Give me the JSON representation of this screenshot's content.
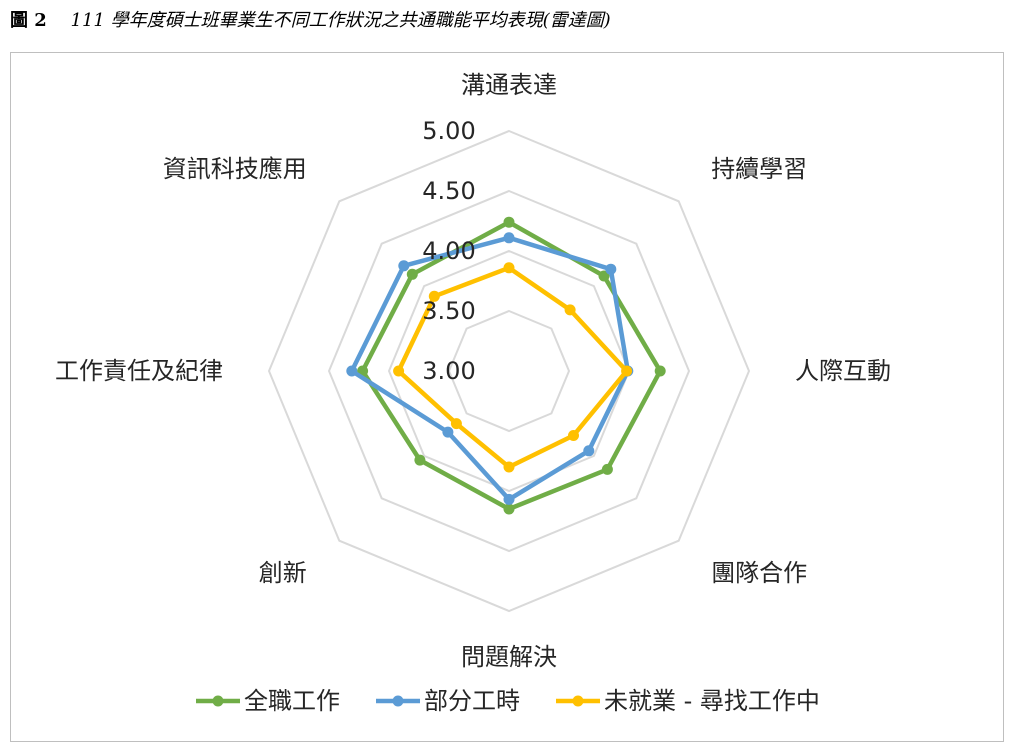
{
  "caption": {
    "label": "圖 2",
    "title": "111 學年度碩士班畢業生不同工作狀況之共通職能平均表現(雷達圖)"
  },
  "chart_data": {
    "type": "radar",
    "categories": [
      "溝通表達",
      "持續學習",
      "人際互動",
      "團隊合作",
      "問題解決",
      "創新",
      "工作責任及紀律",
      "資訊科技應用"
    ],
    "rlim": [
      3.0,
      5.0
    ],
    "ticks": [
      "3.00",
      "3.50",
      "4.00",
      "4.50",
      "5.00"
    ],
    "tick_values": [
      3.0,
      3.5,
      4.0,
      4.5,
      5.0
    ],
    "grid": true,
    "legend_position": "bottom",
    "series": [
      {
        "name": "全職工作",
        "color": "#70ad47",
        "values": [
          4.24,
          4.12,
          4.26,
          4.16,
          4.15,
          4.05,
          4.22,
          4.14
        ]
      },
      {
        "name": "部分工時",
        "color": "#5b9bd5",
        "values": [
          4.11,
          4.2,
          3.99,
          3.94,
          4.07,
          3.72,
          4.31,
          4.24
        ]
      },
      {
        "name": "未就業 - 尋找工作中",
        "color": "#ffc000",
        "values": [
          3.86,
          3.72,
          3.98,
          3.76,
          3.8,
          3.62,
          3.92,
          3.88
        ]
      }
    ]
  }
}
